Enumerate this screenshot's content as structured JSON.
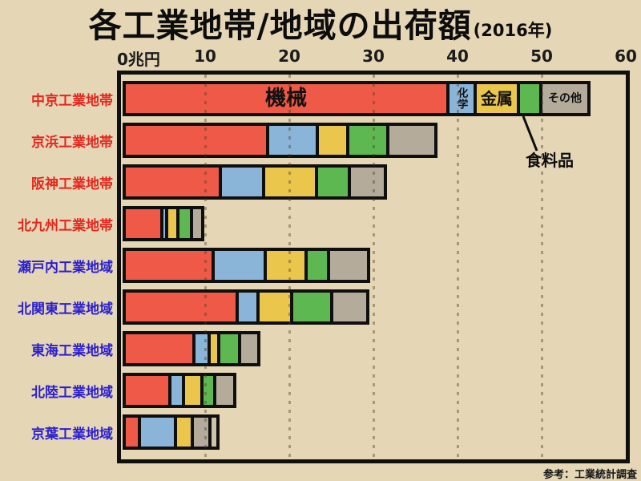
{
  "title": {
    "main": "各工業地帯/地域の出荷額",
    "year_suffix": "(2016年)"
  },
  "axis": {
    "zero_label": "0兆円"
  },
  "legend": {
    "machinery": "機械",
    "chemical": "化学",
    "metal": "金属",
    "food": "食料品",
    "other": "その他"
  },
  "source": "参考：工業統計調査",
  "chart_data": {
    "type": "bar",
    "orientation": "horizontal",
    "title": "各工業地帯/地域の出荷額(2016年)",
    "unit": "兆円",
    "xlim": [
      0,
      60
    ],
    "x_ticks": [
      0,
      10,
      20,
      30,
      40,
      50,
      60
    ],
    "grid": "dotted-vertical",
    "segment_keys": [
      "machinery",
      "chemical",
      "metal",
      "food",
      "other"
    ],
    "segment_labels": {
      "machinery": "機械",
      "chemical": "化学",
      "metal": "金属",
      "food": "食料品",
      "other": "その他"
    },
    "segment_colors": {
      "machinery": "#ee5a47",
      "chemical": "#8ab5d8",
      "metal": "#eac64d",
      "food": "#5eb852",
      "other": "#b5ab9a"
    },
    "label_colors": {
      "zone": "#e6261c",
      "region": "#2a1fd0"
    },
    "bars": [
      {
        "category": "中京工業地帯",
        "group": "zone",
        "values": {
          "machinery": 38.1,
          "chemical": 3.2,
          "metal": 5.2,
          "food": 2.6,
          "other": 5.8
        },
        "inline_labels": {
          "machinery": "機械",
          "chemical": "化学",
          "metal": "金属",
          "other": "その他"
        }
      },
      {
        "category": "京浜工業地帯",
        "group": "zone",
        "values": {
          "machinery": 16.7,
          "chemical": 5.9,
          "metal": 3.6,
          "food": 4.8,
          "other": 5.7
        }
      },
      {
        "category": "阪神工業地帯",
        "group": "zone",
        "values": {
          "machinery": 11.0,
          "chemical": 5.2,
          "metal": 6.3,
          "food": 3.9,
          "other": 4.3
        }
      },
      {
        "category": "北九州工業地帯",
        "group": "zone",
        "values": {
          "machinery": 4.1,
          "chemical": 0.6,
          "metal": 1.3,
          "food": 1.6,
          "other": 1.4
        }
      },
      {
        "category": "瀬戸内工業地域",
        "group": "region",
        "values": {
          "machinery": 10.2,
          "chemical": 6.2,
          "metal": 4.8,
          "food": 2.7,
          "other": 4.8
        }
      },
      {
        "category": "北関東工業地域",
        "group": "region",
        "values": {
          "machinery": 13.0,
          "chemical": 2.5,
          "metal": 4.0,
          "food": 4.8,
          "other": 4.3
        }
      },
      {
        "category": "東海工業地域",
        "group": "region",
        "values": {
          "machinery": 7.9,
          "chemical": 1.8,
          "metal": 1.2,
          "food": 2.4,
          "other": 2.3
        }
      },
      {
        "category": "北陸工業地域",
        "group": "region",
        "values": {
          "machinery": 5.0,
          "chemical": 1.7,
          "metal": 2.2,
          "food": 1.5,
          "other": 2.4
        }
      },
      {
        "category": "京葉工業地域",
        "group": "region",
        "values": {
          "machinery": 1.4,
          "chemical": 4.3,
          "metal": 2.0,
          "food": 2.1,
          "other": 1.0
        },
        "segment_color_overrides": {
          "food": "#b5ab9a",
          "other": "#cdc4ae"
        }
      }
    ]
  }
}
